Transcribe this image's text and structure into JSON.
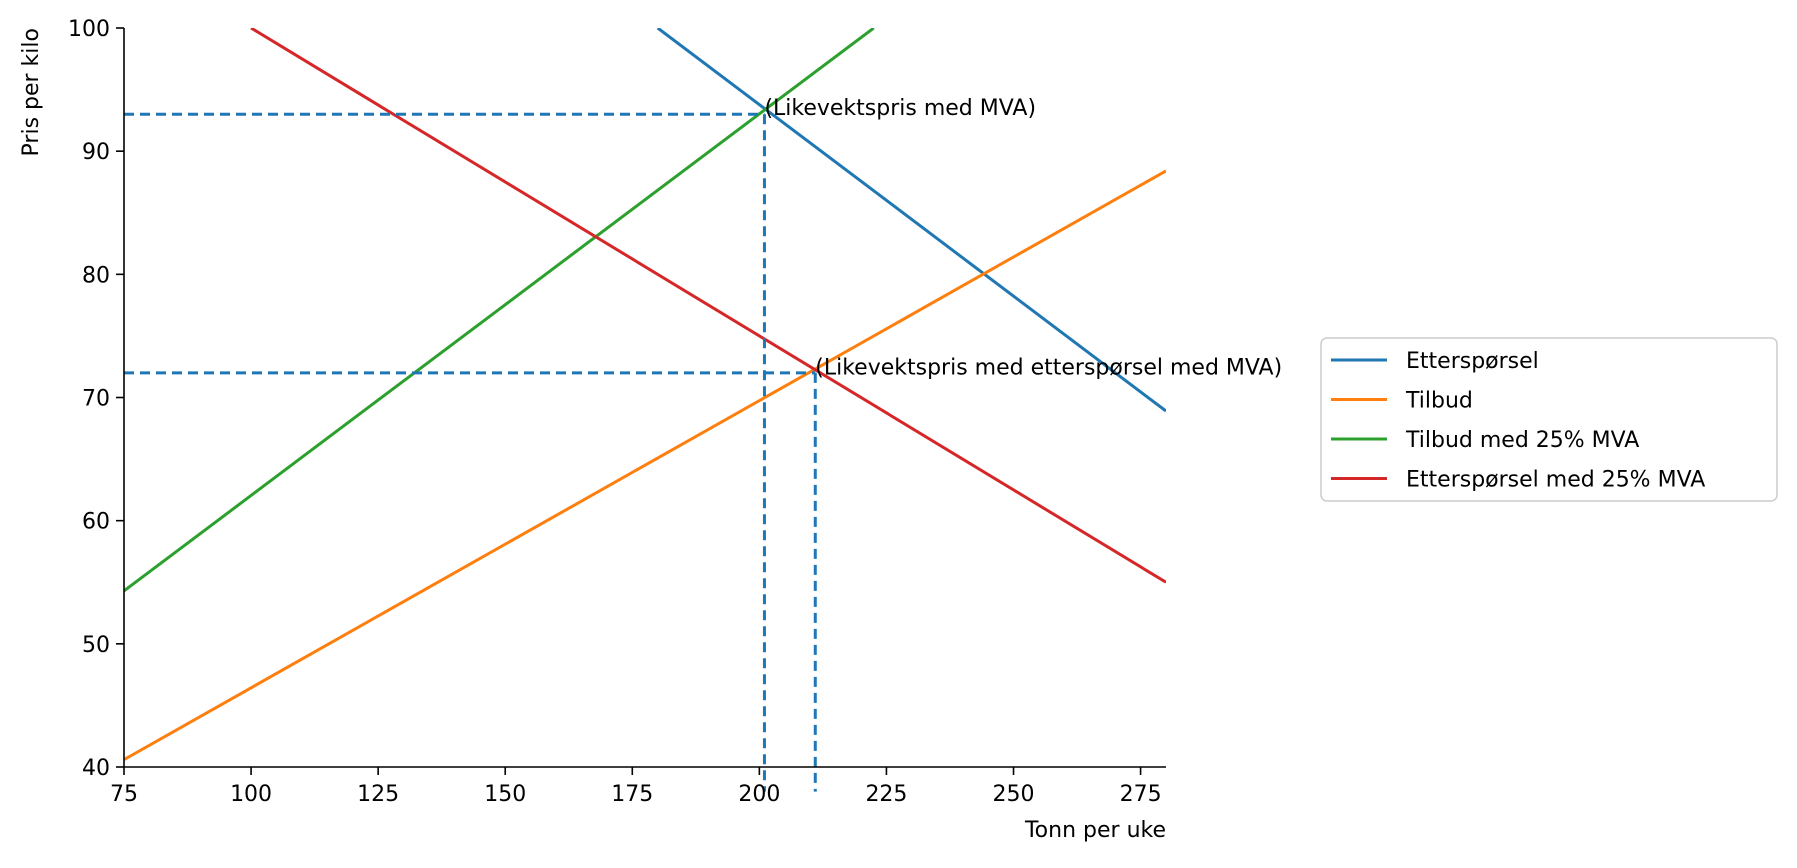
{
  "chart_data": {
    "type": "line",
    "xlabel": "Tonn per uke",
    "ylabel": "Pris per kilo",
    "xlim": [
      75,
      280
    ],
    "ylim": [
      40,
      100
    ],
    "xticks": [
      75,
      100,
      125,
      150,
      175,
      200,
      225,
      250,
      275
    ],
    "yticks": [
      40,
      50,
      60,
      70,
      80,
      90,
      100
    ],
    "grid": false,
    "legend_position": "right",
    "series": [
      {
        "name": "Etterspørsel",
        "color": "#1f77b4",
        "x": [
          180,
          280
        ],
        "y": [
          100,
          68.9
        ]
      },
      {
        "name": "Tilbud",
        "color": "#ff7f0e",
        "x": [
          75,
          280
        ],
        "y": [
          40.6,
          88.4
        ]
      },
      {
        "name": "Tilbud med 25% MVA",
        "color": "#2ca02c",
        "x": [
          75,
          222.5
        ],
        "y": [
          54.3,
          100
        ]
      },
      {
        "name": "Etterspørsel med 25% MVA",
        "color": "#d62728",
        "x": [
          100,
          280
        ],
        "y": [
          100,
          55.0
        ]
      }
    ],
    "reference_lines": [
      {
        "color": "#1f77b4",
        "x": [
          75,
          201
        ],
        "y": [
          93,
          93
        ]
      },
      {
        "color": "#1f77b4",
        "x": [
          201,
          201
        ],
        "y": [
          93,
          38
        ]
      },
      {
        "color": "#1f77b4",
        "x": [
          75,
          211
        ],
        "y": [
          72,
          72
        ]
      },
      {
        "color": "#1f77b4",
        "x": [
          211,
          211
        ],
        "y": [
          72,
          38
        ]
      }
    ],
    "annotations": [
      {
        "text": "(Likevektspris med MVA)",
        "x": 201,
        "y": 93.6
      },
      {
        "text": "(Likevektspris med etterspørsel med MVA)",
        "x": 211,
        "y": 72.5
      }
    ]
  }
}
